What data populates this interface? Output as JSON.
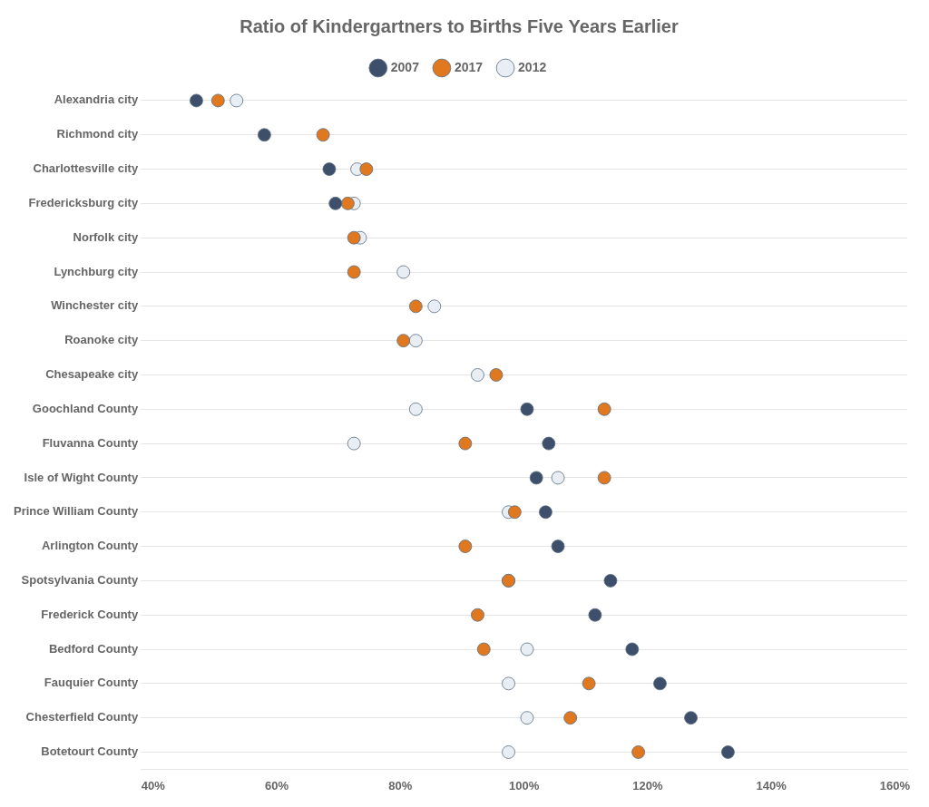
{
  "chart_data": {
    "type": "scatter",
    "orientation": "horizontal",
    "title": "Ratio of Kindergartners to Births Five Years Earlier",
    "categories": [
      "Alexandria city",
      "Richmond city",
      "Charlottesville city",
      "Fredericksburg city",
      "Norfolk city",
      "Lynchburg city",
      "Winchester city",
      "Roanoke city",
      "Chesapeake city",
      "Goochland County",
      "Fluvanna County",
      "Isle of Wight County",
      "Prince William County",
      "Arlington County",
      "Spotsylvania County",
      "Frederick County",
      "Bedford County",
      "Fauquier County",
      "Chesterfield County",
      "Botetourt County"
    ],
    "series": [
      {
        "name": "2007",
        "color": "#3d4f6b",
        "values": [
          0.47,
          0.58,
          0.685,
          0.695,
          null,
          null,
          null,
          null,
          null,
          1.005,
          1.04,
          1.02,
          1.035,
          1.055,
          1.14,
          1.115,
          1.175,
          1.22,
          1.27,
          1.33
        ]
      },
      {
        "name": "2012",
        "color": "#e8eef4",
        "values": [
          0.535,
          null,
          0.73,
          0.725,
          0.735,
          0.805,
          0.855,
          0.825,
          0.925,
          0.825,
          0.725,
          1.055,
          0.975,
          null,
          0.975,
          null,
          1.005,
          0.975,
          1.005,
          0.975
        ]
      },
      {
        "name": "2017",
        "color": "#e07820",
        "values": [
          0.505,
          0.675,
          0.745,
          0.715,
          0.725,
          0.725,
          0.825,
          0.805,
          0.955,
          1.13,
          0.905,
          1.13,
          0.985,
          0.905,
          0.975,
          0.925,
          0.935,
          1.105,
          1.075,
          1.185
        ]
      }
    ],
    "xlim": [
      0.38,
      1.62
    ],
    "xticks": [
      {
        "value": 0.4,
        "label": "40%"
      },
      {
        "value": 0.6,
        "label": "60%"
      },
      {
        "value": 0.8,
        "label": "80%"
      },
      {
        "value": 1.0,
        "label": "100%"
      },
      {
        "value": 1.2,
        "label": "120%"
      },
      {
        "value": 1.4,
        "label": "140%"
      },
      {
        "value": 1.6,
        "label": "160%"
      }
    ],
    "grid": true,
    "legend": "top"
  }
}
